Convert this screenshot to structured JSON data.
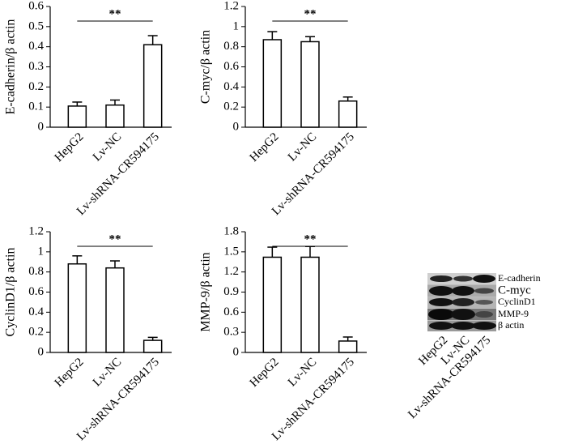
{
  "chart_data": [
    {
      "type": "bar",
      "y_label": "E-cadherin/β actin",
      "categories": [
        "HepG2",
        "Lv-NC",
        "Lv-shRNA-CR594175"
      ],
      "values": [
        0.105,
        0.11,
        0.41
      ],
      "errors": [
        0.02,
        0.025,
        0.045
      ],
      "color": "#ffffff",
      "ylim": [
        0,
        0.6
      ],
      "yticks": [
        0,
        0.1,
        0.2,
        0.3,
        0.4,
        0.5,
        0.6
      ],
      "annotation": "**"
    },
    {
      "type": "bar",
      "y_label": "C-myc/β actin",
      "categories": [
        "HepG2",
        "Lv-NC",
        "Lv-shRNA-CR594175"
      ],
      "values": [
        0.87,
        0.85,
        0.26
      ],
      "errors": [
        0.08,
        0.05,
        0.04
      ],
      "color": "#ffffff",
      "ylim": [
        0,
        1.2
      ],
      "yticks": [
        0,
        0.2,
        0.4,
        0.6,
        0.8,
        1,
        1.2
      ],
      "annotation": "**"
    },
    {
      "type": "bar",
      "y_label": "CyclinD1/β actin",
      "categories": [
        "HepG2",
        "Lv-NC",
        "Lv-shRNA-CR594175"
      ],
      "values": [
        0.88,
        0.84,
        0.12
      ],
      "errors": [
        0.08,
        0.07,
        0.03
      ],
      "color": "#ffffff",
      "ylim": [
        0,
        1.2
      ],
      "yticks": [
        0,
        0.2,
        0.4,
        0.6,
        0.8,
        1,
        1.2
      ],
      "annotation": "**"
    },
    {
      "type": "bar",
      "y_label": "MMP-9/β actin",
      "categories": [
        "HepG2",
        "Lv-NC",
        "Lv-shRNA-CR594175"
      ],
      "values": [
        1.42,
        1.42,
        0.17
      ],
      "errors": [
        0.15,
        0.16,
        0.06
      ],
      "color": "#ffffff",
      "ylim": [
        0,
        1.8
      ],
      "yticks": [
        0,
        0.3,
        0.6,
        0.9,
        1.2,
        1.5,
        1.8
      ],
      "annotation": "**"
    }
  ],
  "blot": {
    "bands": [
      "E-cadherin",
      "C-myc",
      "CyclinD1",
      "MMP-9",
      "β actin"
    ],
    "lanes": [
      "HepG2",
      "Lv-NC",
      "Lv-shRNA-CR594175"
    ]
  }
}
